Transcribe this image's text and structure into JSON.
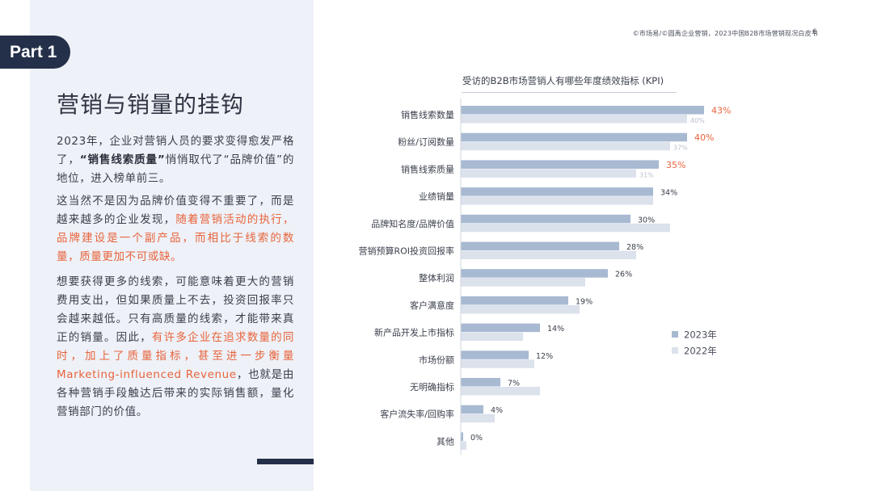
{
  "header": {
    "source": "©市场易/©圆禹企业营销，2023中国B2B市场营销现况白皮书",
    "page_number": "6"
  },
  "left_panel": {
    "part_tag": "Part 1",
    "title": "营销与销量的挂钩",
    "paragraphs": [
      [
        {
          "t": "2023年，企业对营销人员的要求变得愈发严格了，"
        },
        {
          "t": "“销售线索质量”",
          "s": "bold"
        },
        {
          "t": "悄悄取代了“品牌价值”的地位，进入榜单前三。"
        }
      ],
      [
        {
          "t": "这当然不是因为品牌价值变得不重要了，而是越来越多的企业发现，"
        },
        {
          "t": "随着营销活动的执行，品牌建设是一个副产品，而相比于线索的数量，质量更加不可或缺。",
          "s": "hl"
        }
      ],
      [
        {
          "t": "想要获得更多的线索，可能意味着更大的营销费用支出，但如果质量上不去，投资回报率只会越来越低。只有高质量的线索，才能带来真正的销量。因此，"
        },
        {
          "t": "有许多企业在追求数量的同时，加上了质量指标，甚至进一步衡量Marketing-influenced Revenue",
          "s": "hl"
        },
        {
          "t": "，也就是由各种营销手段触达后带来的实际销售额，量化营销部门的价值。"
        }
      ]
    ]
  },
  "colors": {
    "series_2023": "#a8b9d2",
    "series_2022": "#dce2ec",
    "highlight": "#e8643c",
    "label_2023": "#3a3f4b",
    "label_2022": "#b8c0cc"
  },
  "chart_data": {
    "type": "bar",
    "orientation": "horizontal",
    "title": "受访的B2B市场营销人有哪些年度绩效指标 (KPI)",
    "categories": [
      "销售线索数量",
      "粉丝/订阅数量",
      "销售线索质量",
      "业绩销量",
      "品牌知名度/品牌价值",
      "营销预算ROI投资回报率",
      "整体利润",
      "客户满意度",
      "新产品开发上市指标",
      "市场份额",
      "无明确指标",
      "客户流失率/回购率",
      "其他"
    ],
    "series": [
      {
        "name": "2023年",
        "values": [
          43,
          40,
          35,
          34,
          30,
          28,
          26,
          19,
          14,
          12,
          7,
          4,
          0
        ],
        "labels": [
          "43%",
          "40%",
          "35%",
          "34%",
          "30%",
          "28%",
          "26%",
          "19%",
          "14%",
          "12%",
          "7%",
          "4%",
          "0%"
        ],
        "highlight_top": 3
      },
      {
        "name": "2022年",
        "values": [
          40,
          37,
          31,
          34,
          37,
          31,
          22,
          21,
          11,
          13,
          14,
          6,
          1
        ],
        "labels": [
          "40%",
          "37%",
          "31%"
        ]
      }
    ],
    "legend": "right"
  }
}
